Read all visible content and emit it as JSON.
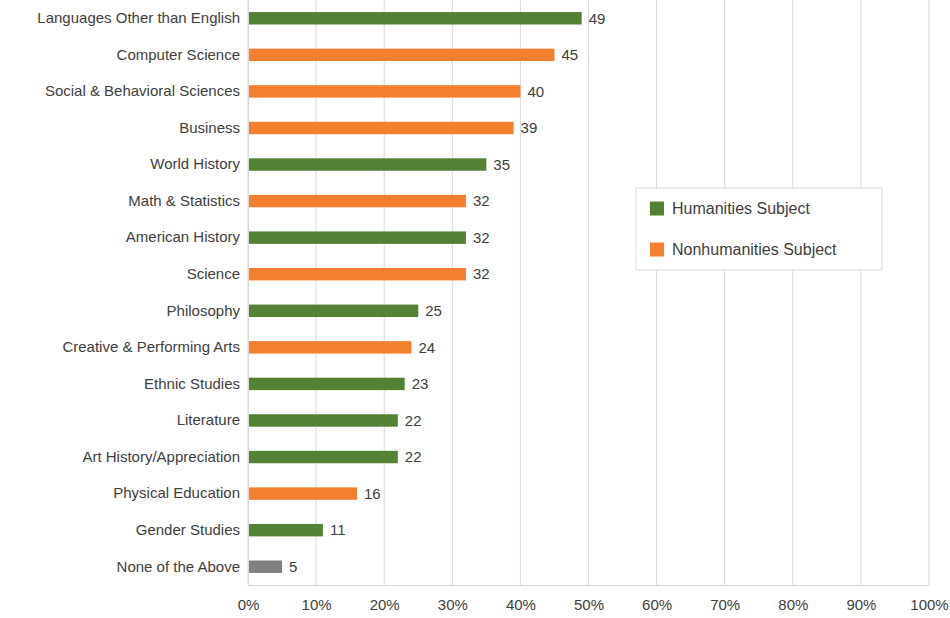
{
  "chart_data": {
    "type": "bar",
    "orientation": "horizontal",
    "stacked": true,
    "data_labels": true,
    "grid": true,
    "legend": "right",
    "categories": [
      "Languages Other than English",
      "Computer Science",
      "Social & Behavioral Sciences",
      "Business",
      "World History",
      "Math & Statistics",
      "American History",
      "Science",
      "Philosophy",
      "Creative & Performing Arts",
      "Ethnic Studies",
      "Literature",
      "Art History/Appreciation",
      "Physical Education",
      "Gender Studies",
      "None of the Above"
    ],
    "series": [
      {
        "name": "Humanities Subject",
        "color": "#548235",
        "values": [
          49,
          null,
          null,
          null,
          35,
          null,
          32,
          null,
          25,
          null,
          23,
          22,
          22,
          null,
          11,
          null
        ]
      },
      {
        "name": "Nonhumanities Subject",
        "color": "#f4802f",
        "values": [
          null,
          45,
          40,
          39,
          null,
          32,
          null,
          32,
          null,
          24,
          null,
          null,
          null,
          16,
          null,
          null
        ]
      },
      {
        "color": "#808080",
        "values": [
          null,
          null,
          null,
          null,
          null,
          null,
          null,
          null,
          null,
          null,
          null,
          null,
          null,
          null,
          null,
          5
        ]
      }
    ],
    "xlim": [
      0,
      100
    ],
    "xticks": [
      {
        "value": 0,
        "label": "0%"
      },
      {
        "value": 10,
        "label": "10%"
      },
      {
        "value": 20,
        "label": "20%"
      },
      {
        "value": 30,
        "label": "30%"
      },
      {
        "value": 40,
        "label": "40%"
      },
      {
        "value": 50,
        "label": "50%"
      },
      {
        "value": 60,
        "label": "60%"
      },
      {
        "value": 70,
        "label": "70%"
      },
      {
        "value": 80,
        "label": "80%"
      },
      {
        "value": 90,
        "label": "90%"
      },
      {
        "value": 100,
        "label": "100%"
      }
    ]
  }
}
